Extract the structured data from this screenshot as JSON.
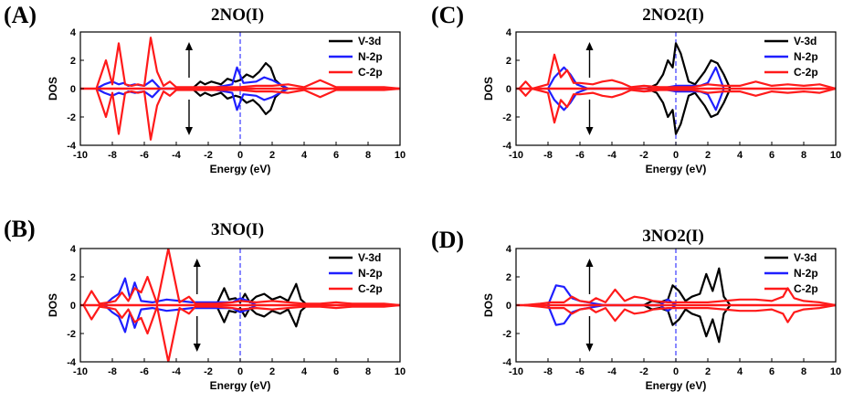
{
  "panels": [
    {
      "letter": "(A)",
      "title": "2NO(I)"
    },
    {
      "letter": "(B)",
      "title": "3NO(I)"
    },
    {
      "letter": "(C)",
      "title": "2NO2(I)"
    },
    {
      "letter": "(D)",
      "title": "3NO2(I)"
    }
  ],
  "colors": {
    "V-3d": "#000000",
    "N-2p": "#1f1fff",
    "C-2p": "#ff1a1a",
    "fermi": "#3a3aff"
  },
  "chart_data": [
    {
      "type": "line",
      "title": "2NO(I)",
      "xlabel": "Energy (eV)",
      "ylabel": "DOS",
      "xlim": [
        -10,
        10
      ],
      "ylim": [
        -4,
        4
      ],
      "xticks": [
        -10,
        -8,
        -6,
        -4,
        -2,
        0,
        2,
        4,
        6,
        8,
        10
      ],
      "yticks": [
        -4,
        -2,
        0,
        2,
        4
      ],
      "legend": [
        "V-3d",
        "N-2p",
        "C-2p"
      ],
      "legend_position": "top-right",
      "fermi_level": 0,
      "series": [
        {
          "name": "V-3d",
          "x": [
            -3.0,
            -2.5,
            -2.2,
            -1.8,
            -1.2,
            -0.8,
            -0.3,
            0.0,
            0.4,
            0.8,
            1.2,
            1.6,
            1.9,
            2.2,
            2.6,
            3.0
          ],
          "y": [
            0,
            0.5,
            0.3,
            0.5,
            0.3,
            0.7,
            0.5,
            0.6,
            1.0,
            0.8,
            1.2,
            1.8,
            1.5,
            0.6,
            0.2,
            0
          ]
        },
        {
          "name": "N-2p",
          "x": [
            -9.0,
            -8.5,
            -8.0,
            -7.6,
            -7.3,
            -7.0,
            -6.6,
            -6.0,
            -5.5,
            -5.0,
            -2.0,
            -1.0,
            -0.5,
            -0.2,
            0.2,
            1.0,
            1.5,
            2.0,
            2.5,
            3.0
          ],
          "y": [
            0,
            0.3,
            0.5,
            0.3,
            0.4,
            0.2,
            0.3,
            0.2,
            0.6,
            0,
            0,
            0.2,
            0.3,
            1.5,
            0.4,
            0.5,
            0.8,
            0.6,
            0.3,
            0
          ]
        },
        {
          "name": "C-2p",
          "x": [
            -9.0,
            -8.4,
            -8.0,
            -7.6,
            -7.2,
            -6.8,
            -6.4,
            -6.0,
            -5.6,
            -5.2,
            -4.8,
            -4.4,
            -4.0,
            -3.0,
            -1.0,
            0.0,
            1.0,
            2.0,
            3.0,
            4.0,
            5.0,
            6.0,
            7.0,
            8.0,
            9.0,
            10.0
          ],
          "y": [
            0,
            2.0,
            0.3,
            3.2,
            0.3,
            0.2,
            0.3,
            0.2,
            3.6,
            1.2,
            0.2,
            0.5,
            0.1,
            0.1,
            0.1,
            0.1,
            0.2,
            0.2,
            0.3,
            0.1,
            0.6,
            0.1,
            0.1,
            0.1,
            0.1,
            0
          ]
        }
      ]
    },
    {
      "type": "line",
      "title": "3NO(I)",
      "xlabel": "Energy (eV)",
      "ylabel": "DOS",
      "xlim": [
        -10,
        10
      ],
      "ylim": [
        -4,
        4
      ],
      "xticks": [
        -10,
        -8,
        -6,
        -4,
        -2,
        0,
        2,
        4,
        6,
        8,
        10
      ],
      "yticks": [
        -4,
        -2,
        0,
        2,
        4
      ],
      "legend": [
        "V-3d",
        "N-2p",
        "C-2p"
      ],
      "legend_position": "top-right",
      "fermi_level": 0,
      "series": [
        {
          "name": "V-3d",
          "x": [
            -1.5,
            -1.0,
            -0.7,
            -0.3,
            0.0,
            0.3,
            0.6,
            1.0,
            1.5,
            2.0,
            2.5,
            3.0,
            3.5,
            3.8,
            4.2
          ],
          "y": [
            0,
            1.2,
            0.4,
            0.5,
            0.2,
            0.8,
            0.2,
            0.6,
            0.8,
            0.4,
            0.6,
            0.3,
            1.5,
            0.4,
            0
          ]
        },
        {
          "name": "N-2p",
          "x": [
            -8.5,
            -8.0,
            -7.6,
            -7.2,
            -6.9,
            -6.6,
            -6.2,
            -5.5,
            -4.6,
            -3.0,
            -0.5,
            0.0,
            0.5,
            1.0
          ],
          "y": [
            0,
            0.5,
            0.8,
            1.9,
            0.5,
            1.6,
            0.3,
            0.2,
            0.4,
            0.2,
            0.2,
            0.5,
            0.3,
            0
          ]
        },
        {
          "name": "C-2p",
          "x": [
            -9.8,
            -9.3,
            -8.8,
            -8.2,
            -7.8,
            -7.4,
            -7.0,
            -6.6,
            -6.2,
            -5.8,
            -5.2,
            -4.5,
            -3.8,
            -3.2,
            -2.8,
            -1.5,
            -0.5,
            0.0,
            1.0,
            2.0,
            3.0,
            4.0,
            5.0,
            6.0,
            7.0,
            8.0,
            9.0,
            10.0
          ],
          "y": [
            0,
            1.0,
            0.1,
            0.2,
            0.3,
            0.9,
            0.3,
            1.2,
            0.9,
            2.0,
            0.1,
            4.0,
            0.2,
            0.6,
            0.1,
            0.1,
            0.2,
            0.3,
            0.2,
            0.3,
            0.2,
            0.1,
            0.1,
            0.2,
            0.1,
            0.1,
            0.1,
            0
          ]
        }
      ]
    },
    {
      "type": "line",
      "title": "2NO2(I)",
      "xlabel": "Energy (eV)",
      "ylabel": "DOS",
      "xlim": [
        -10,
        10
      ],
      "ylim": [
        -4,
        4
      ],
      "xticks": [
        -10,
        -8,
        -6,
        -4,
        -2,
        0,
        2,
        4,
        6,
        8,
        10
      ],
      "yticks": [
        -4,
        -2,
        0,
        2,
        4
      ],
      "legend": [
        "V-3d",
        "N-2p",
        "C-2p"
      ],
      "legend_position": "top-right",
      "fermi_level": 0,
      "series": [
        {
          "name": "V-3d",
          "x": [
            -1.8,
            -1.2,
            -0.8,
            -0.5,
            -0.2,
            0.0,
            0.3,
            0.8,
            1.2,
            1.8,
            2.2,
            2.6,
            3.0,
            3.4
          ],
          "y": [
            0,
            0.3,
            1.0,
            2.0,
            1.5,
            3.2,
            2.5,
            0.5,
            0.3,
            1.2,
            2.0,
            1.8,
            1.0,
            0
          ]
        },
        {
          "name": "N-2p",
          "x": [
            -8.0,
            -7.6,
            -7.0,
            -6.6,
            -6.2,
            -5.5,
            -1.0,
            0.0,
            1.5,
            2.0,
            2.5,
            3.0
          ],
          "y": [
            0,
            0.8,
            1.5,
            1.0,
            0.3,
            0,
            0,
            0.2,
            0.2,
            0.4,
            1.5,
            0
          ]
        },
        {
          "name": "C-2p",
          "x": [
            -9.8,
            -9.4,
            -9.0,
            -8.0,
            -7.6,
            -7.2,
            -6.8,
            -6.4,
            -6.0,
            -5.2,
            -4.6,
            -4.0,
            -3.4,
            -2.8,
            -2.0,
            -1.0,
            0.0,
            1.0,
            2.0,
            3.0,
            4.0,
            5.0,
            6.0,
            7.0,
            8.0,
            9.0,
            10.0
          ],
          "y": [
            0,
            0.5,
            0,
            0.3,
            2.4,
            0.8,
            1.3,
            0.4,
            0.4,
            0.3,
            0.5,
            0.6,
            0.4,
            0.1,
            0.2,
            0.1,
            0.1,
            0.1,
            0.3,
            0.2,
            0.2,
            0.5,
            0.2,
            0.3,
            0.2,
            0.3,
            0
          ]
        }
      ]
    },
    {
      "type": "line",
      "title": "3NO2(I)",
      "xlabel": "Energy (eV)",
      "ylabel": "DOS",
      "xlim": [
        -10,
        10
      ],
      "ylim": [
        -4,
        4
      ],
      "xticks": [
        -10,
        -8,
        -6,
        -4,
        -2,
        0,
        2,
        4,
        6,
        8,
        10
      ],
      "yticks": [
        -4,
        -2,
        0,
        2,
        4
      ],
      "legend": [
        "V-3d",
        "N-2p",
        "C-2p"
      ],
      "legend_position": "top-right",
      "fermi_level": 0,
      "series": [
        {
          "name": "V-3d",
          "x": [
            -2.0,
            -1.5,
            -1.0,
            -0.5,
            -0.2,
            0.2,
            0.6,
            1.0,
            1.5,
            1.9,
            2.3,
            2.7,
            3.0,
            3.4
          ],
          "y": [
            0,
            0.3,
            0.2,
            0.4,
            1.4,
            1.0,
            0.3,
            0.6,
            0.8,
            2.2,
            1.0,
            2.6,
            0.6,
            0
          ]
        },
        {
          "name": "N-2p",
          "x": [
            -8.0,
            -7.5,
            -7.0,
            -6.5,
            -6.0,
            -5.5,
            -4.5,
            -1.0,
            -0.5,
            0.0
          ],
          "y": [
            0,
            1.4,
            1.3,
            0.5,
            0.3,
            0.2,
            0,
            0,
            0.4,
            0
          ]
        },
        {
          "name": "C-2p",
          "x": [
            -9.5,
            -8.5,
            -7.8,
            -7.0,
            -6.5,
            -6.0,
            -5.4,
            -5.0,
            -4.4,
            -3.8,
            -3.2,
            -2.6,
            -2.0,
            -1.4,
            -0.5,
            0.0,
            1.0,
            2.0,
            3.0,
            4.0,
            5.0,
            6.0,
            6.7,
            7.0,
            7.4,
            8.0,
            9.0,
            10.0
          ],
          "y": [
            0,
            0.1,
            0.2,
            0.2,
            0.6,
            0.3,
            0.2,
            0.5,
            0.2,
            1.1,
            0.3,
            0.6,
            0.5,
            0.3,
            0.2,
            0.2,
            0.2,
            0.2,
            0.3,
            0.4,
            0.4,
            0.3,
            0.6,
            1.2,
            0.5,
            0.3,
            0.2,
            0
          ]
        }
      ]
    }
  ]
}
